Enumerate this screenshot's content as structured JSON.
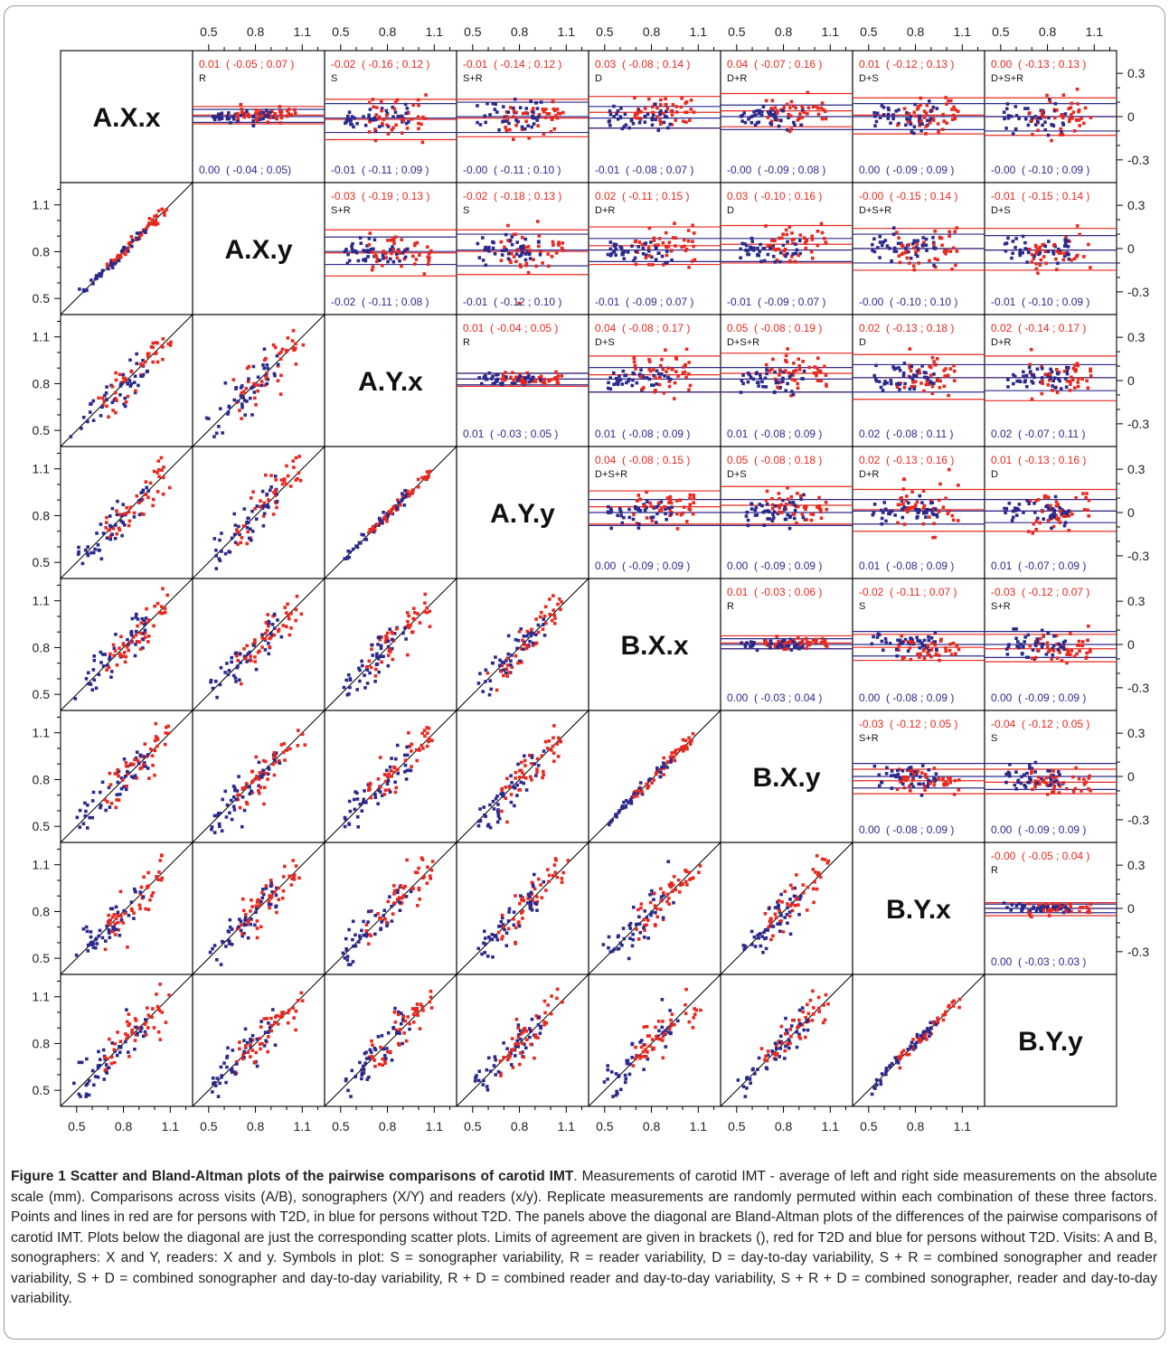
{
  "figure": {
    "caption_label": "Figure 1",
    "caption_title": "Scatter and Bland-Altman plots of the pairwise comparisons of carotid IMT",
    "caption_body": ". Measurements of carotid IMT - average of left and right side measurements on the absolute scale (mm). Comparisons across visits (A/B), sonographers (X/Y) and readers (x/y). Replicate measurements are randomly permuted within each combination of these three factors. Points and lines in red are for persons with T2D, in blue for persons without T2D. The panels above the diagonal are Bland-Altman plots of the differences of the pairwise comparisons of carotid IMT. Plots below the diagonal are just the corresponding scatter plots. Limits of agreement are given in brackets (), red for T2D and blue for persons without T2D. Visits: A and B, sonographers: X and Y, readers: X and y. Symbols in plot: S = sonographer variability, R = reader variability, D = day-to-day variability, S + R = combined sonographer and reader variability, S + D = combined sonographer and day-to-day variability, R + D = combined reader and day-to-day variability, S + R + D = combined sonographer, reader and day-to-day variability."
  },
  "colors": {
    "t2d": "#e8291f",
    "no_t2d": "#2b2a8c",
    "frame": "#000000"
  },
  "chart_data": {
    "type": "scatter",
    "variables": [
      "A.X.x",
      "A.X.y",
      "A.Y.x",
      "A.Y.y",
      "B.X.x",
      "B.X.y",
      "B.Y.x",
      "B.Y.y"
    ],
    "scatter_axis": {
      "ticks": [
        0.5,
        0.8,
        1.1
      ],
      "tick_labels": [
        "0.5",
        "0.8",
        "1.1"
      ],
      "range": [
        0.42,
        1.22
      ]
    },
    "difference_axis": {
      "ticks": [
        0.3,
        0,
        -0.3
      ],
      "tick_labels": [
        "0.3",
        "0",
        "-0.3"
      ],
      "range": [
        -0.42,
        0.42
      ]
    },
    "top_axis": {
      "ticks": [
        0.5,
        0.8,
        1.1
      ],
      "tick_labels": [
        "0.5",
        "0.8",
        "1.1"
      ]
    },
    "series_colors": {
      "t2d": "red",
      "no_t2d": "blue"
    },
    "bland_altman_panels": [
      {
        "row": 0,
        "col": 1,
        "symbol": "R",
        "red": "0.01  ( -0.05 ; 0.07 )",
        "blue": "0.00  ( -0.04 ; 0.05)",
        "red_loa": [
          0.01,
          -0.05,
          0.07
        ],
        "blue_loa": [
          0.0,
          -0.04,
          0.05
        ]
      },
      {
        "row": 0,
        "col": 2,
        "symbol": "S",
        "red": "-0.02  ( -0.16 ; 0.12 )",
        "blue": "-0.01  ( -0.11 ; 0.09 )",
        "red_loa": [
          -0.02,
          -0.16,
          0.12
        ],
        "blue_loa": [
          -0.01,
          -0.11,
          0.09
        ]
      },
      {
        "row": 0,
        "col": 3,
        "symbol": "S+R",
        "red": "-0.01  ( -0.14 ; 0.12 )",
        "blue": "-0.00  ( -0.11 ; 0.10 )",
        "red_loa": [
          -0.01,
          -0.14,
          0.12
        ],
        "blue_loa": [
          0.0,
          -0.11,
          0.1
        ]
      },
      {
        "row": 0,
        "col": 4,
        "symbol": "D",
        "red": "0.03  ( -0.08 ; 0.14 )",
        "blue": "-0.01  ( -0.08 ; 0.07 )",
        "red_loa": [
          0.03,
          -0.08,
          0.14
        ],
        "blue_loa": [
          -0.01,
          -0.08,
          0.07
        ]
      },
      {
        "row": 0,
        "col": 5,
        "symbol": "D+R",
        "red": "0.04  ( -0.07 ; 0.16 )",
        "blue": "-0.00  ( -0.09 ; 0.08 )",
        "red_loa": [
          0.04,
          -0.07,
          0.16
        ],
        "blue_loa": [
          0.0,
          -0.09,
          0.08
        ]
      },
      {
        "row": 0,
        "col": 6,
        "symbol": "D+S",
        "red": "0.01  ( -0.12 ; 0.13 )",
        "blue": "0.00  ( -0.09 ; 0.09 )",
        "red_loa": [
          0.01,
          -0.12,
          0.13
        ],
        "blue_loa": [
          0.0,
          -0.09,
          0.09
        ]
      },
      {
        "row": 0,
        "col": 7,
        "symbol": "D+S+R",
        "red": "0.00  ( -0.13 ; 0.13 )",
        "blue": "-0.00  ( -0.10 ; 0.09 )",
        "red_loa": [
          0.0,
          -0.13,
          0.13
        ],
        "blue_loa": [
          0.0,
          -0.1,
          0.09
        ]
      },
      {
        "row": 1,
        "col": 2,
        "symbol": "S+R",
        "red": "-0.03  ( -0.19 ; 0.13 )",
        "blue": "-0.02  ( -0.11 ; 0.08 )",
        "red_loa": [
          -0.03,
          -0.19,
          0.13
        ],
        "blue_loa": [
          -0.02,
          -0.11,
          0.08
        ]
      },
      {
        "row": 1,
        "col": 3,
        "symbol": "S",
        "red": "-0.02  ( -0.18 ; 0.13 )",
        "blue": "-0.01  ( -0.12 ; 0.10 )",
        "red_loa": [
          -0.02,
          -0.18,
          0.13
        ],
        "blue_loa": [
          -0.01,
          -0.12,
          0.1
        ]
      },
      {
        "row": 1,
        "col": 4,
        "symbol": "D+R",
        "red": "0.02  ( -0.11 ; 0.15 )",
        "blue": "-0.01  ( -0.09 ; 0.07 )",
        "red_loa": [
          0.02,
          -0.11,
          0.15
        ],
        "blue_loa": [
          -0.01,
          -0.09,
          0.07
        ]
      },
      {
        "row": 1,
        "col": 5,
        "symbol": "D",
        "red": "0.03  ( -0.10 ; 0.16 )",
        "blue": "-0.01  ( -0.09 ; 0.07 )",
        "red_loa": [
          0.03,
          -0.1,
          0.16
        ],
        "blue_loa": [
          -0.01,
          -0.09,
          0.07
        ]
      },
      {
        "row": 1,
        "col": 6,
        "symbol": "D+S+R",
        "red": "-0.00  ( -0.15 ; 0.14 )",
        "blue": "-0.00  ( -0.10 ; 0.10 )",
        "red_loa": [
          0.0,
          -0.15,
          0.14
        ],
        "blue_loa": [
          0.0,
          -0.1,
          0.1
        ]
      },
      {
        "row": 1,
        "col": 7,
        "symbol": "D+S",
        "red": "-0.01  ( -0.15 ; 0.14 )",
        "blue": "-0.01  ( -0.10 ; 0.09 )",
        "red_loa": [
          -0.01,
          -0.15,
          0.14
        ],
        "blue_loa": [
          -0.01,
          -0.1,
          0.09
        ]
      },
      {
        "row": 2,
        "col": 3,
        "symbol": "R",
        "red": "0.01  ( -0.04 ; 0.05 )",
        "blue": "0.01  ( -0.03 ; 0.05 )",
        "red_loa": [
          0.01,
          -0.04,
          0.05
        ],
        "blue_loa": [
          0.01,
          -0.03,
          0.05
        ]
      },
      {
        "row": 2,
        "col": 4,
        "symbol": "D+S",
        "red": "0.04  ( -0.08 ; 0.17 )",
        "blue": "0.01  ( -0.08 ; 0.09 )",
        "red_loa": [
          0.04,
          -0.08,
          0.17
        ],
        "blue_loa": [
          0.01,
          -0.08,
          0.09
        ]
      },
      {
        "row": 2,
        "col": 5,
        "symbol": "D+S+R",
        "red": "0.05  ( -0.08 ; 0.19 )",
        "blue": "0.01  ( -0.08 ; 0.09 )",
        "red_loa": [
          0.05,
          -0.08,
          0.19
        ],
        "blue_loa": [
          0.01,
          -0.08,
          0.09
        ]
      },
      {
        "row": 2,
        "col": 6,
        "symbol": "D",
        "red": "0.02  ( -0.13 ; 0.18 )",
        "blue": "0.02  ( -0.08 ; 0.11 )",
        "red_loa": [
          0.02,
          -0.13,
          0.18
        ],
        "blue_loa": [
          0.02,
          -0.08,
          0.11
        ]
      },
      {
        "row": 2,
        "col": 7,
        "symbol": "D+R",
        "red": "0.02  ( -0.14 ; 0.17 )",
        "blue": "0.02  ( -0.07 ; 0.11 )",
        "red_loa": [
          0.02,
          -0.14,
          0.17
        ],
        "blue_loa": [
          0.02,
          -0.07,
          0.11
        ]
      },
      {
        "row": 3,
        "col": 4,
        "symbol": "D+S+R",
        "red": "0.04  ( -0.08 ; 0.15 )",
        "blue": "0.00  ( -0.09 ; 0.09 )",
        "red_loa": [
          0.04,
          -0.08,
          0.15
        ],
        "blue_loa": [
          0.0,
          -0.09,
          0.09
        ]
      },
      {
        "row": 3,
        "col": 5,
        "symbol": "D+S",
        "red": "0.05  ( -0.08 ; 0.18 )",
        "blue": "0.00  ( -0.09 ; 0.09 )",
        "red_loa": [
          0.05,
          -0.08,
          0.18
        ],
        "blue_loa": [
          0.0,
          -0.09,
          0.09
        ]
      },
      {
        "row": 3,
        "col": 6,
        "symbol": "D+R",
        "red": "0.02  ( -0.13 ; 0.16 )",
        "blue": "0.01  ( -0.08 ; 0.09 )",
        "red_loa": [
          0.02,
          -0.13,
          0.16
        ],
        "blue_loa": [
          0.01,
          -0.08,
          0.09
        ]
      },
      {
        "row": 3,
        "col": 7,
        "symbol": "D",
        "red": "0.01  ( -0.13 ; 0.16 )",
        "blue": "0.01  ( -0.07 ; 0.09 )",
        "red_loa": [
          0.01,
          -0.13,
          0.16
        ],
        "blue_loa": [
          0.01,
          -0.07,
          0.09
        ]
      },
      {
        "row": 4,
        "col": 5,
        "symbol": "R",
        "red": "0.01  ( -0.03 ; 0.06 )",
        "blue": "0.00  ( -0.03 ; 0.04 )",
        "red_loa": [
          0.01,
          -0.03,
          0.06
        ],
        "blue_loa": [
          0.0,
          -0.03,
          0.04
        ]
      },
      {
        "row": 4,
        "col": 6,
        "symbol": "S",
        "red": "-0.02  ( -0.11 ; 0.07 )",
        "blue": "0.00  ( -0.08 ; 0.09 )",
        "red_loa": [
          -0.02,
          -0.11,
          0.07
        ],
        "blue_loa": [
          0.0,
          -0.08,
          0.09
        ]
      },
      {
        "row": 4,
        "col": 7,
        "symbol": "S+R",
        "red": "-0.03  ( -0.12 ; 0.07 )",
        "blue": "0.00  ( -0.09 ; 0.09 )",
        "red_loa": [
          -0.03,
          -0.12,
          0.07
        ],
        "blue_loa": [
          0.0,
          -0.09,
          0.09
        ]
      },
      {
        "row": 5,
        "col": 6,
        "symbol": "S+R",
        "red": "-0.03  ( -0.12 ; 0.05 )",
        "blue": "0.00  ( -0.08 ; 0.09 )",
        "red_loa": [
          -0.03,
          -0.12,
          0.05
        ],
        "blue_loa": [
          0.0,
          -0.08,
          0.09
        ]
      },
      {
        "row": 5,
        "col": 7,
        "symbol": "S",
        "red": "-0.04  ( -0.12 ; 0.05 )",
        "blue": "0.00  ( -0.09 ; 0.09 )",
        "red_loa": [
          -0.04,
          -0.12,
          0.05
        ],
        "blue_loa": [
          0.0,
          -0.09,
          0.09
        ]
      },
      {
        "row": 6,
        "col": 7,
        "symbol": "R",
        "red": "-0.00  ( -0.05 ; 0.04 )",
        "blue": "0.00  ( -0.03 ; 0.03 )",
        "red_loa": [
          0.0,
          -0.05,
          0.04
        ],
        "blue_loa": [
          0.0,
          -0.03,
          0.03
        ]
      }
    ]
  }
}
